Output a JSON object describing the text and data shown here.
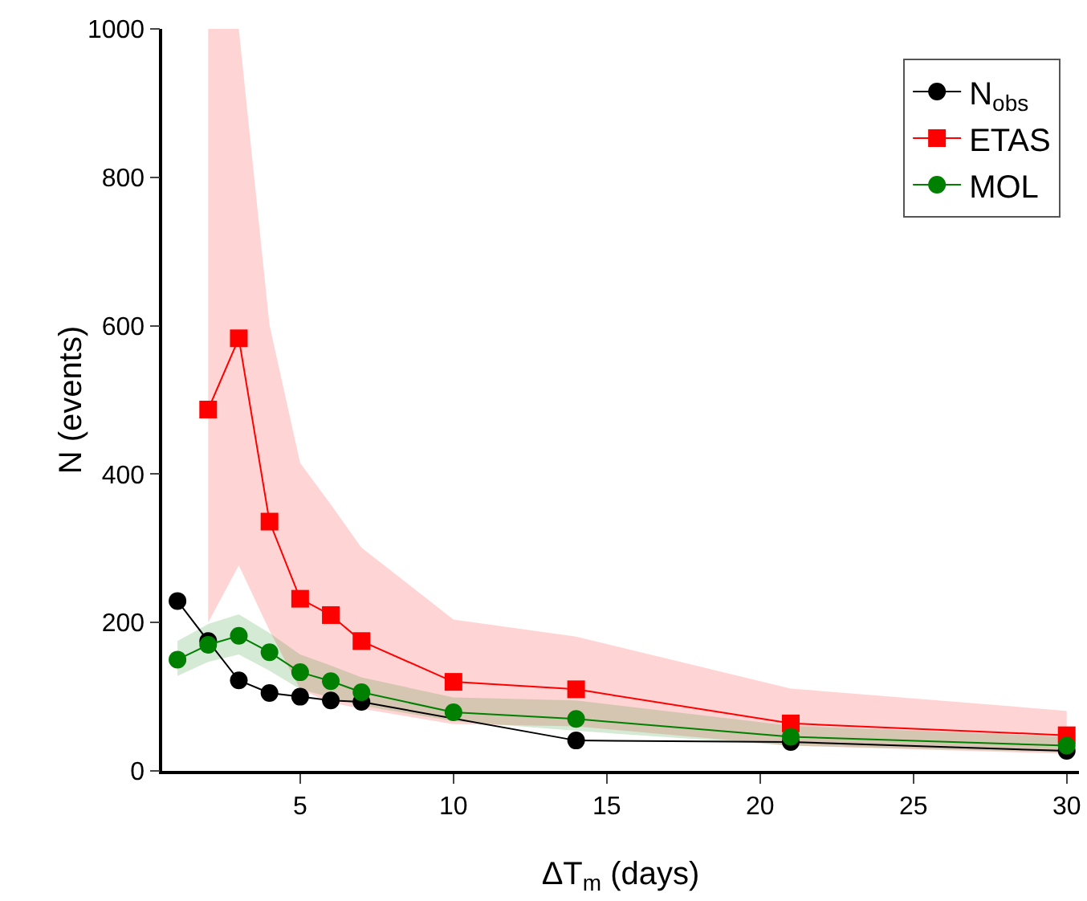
{
  "chart_data": {
    "type": "line",
    "xlabel": "ΔT$_{m}$ (days)",
    "ylabel": "N (events)",
    "x": [
      1,
      2,
      3,
      4,
      5,
      6,
      7,
      10,
      14,
      21,
      30
    ],
    "series": [
      {
        "name": "N$_{obs}$",
        "color": "#000000",
        "marker": "circle",
        "x": [
          1,
          2,
          3,
          4,
          5,
          6,
          7,
          14,
          21,
          30
        ],
        "values": [
          229,
          175,
          122,
          105,
          100,
          95,
          93,
          41,
          39,
          27
        ]
      },
      {
        "name": "ETAS",
        "color": "#ff0000",
        "marker": "square",
        "x": [
          2,
          3,
          4,
          5,
          6,
          7,
          10,
          14,
          21,
          30
        ],
        "values": [
          487,
          583,
          336,
          232,
          210,
          175,
          120,
          110,
          64,
          48
        ],
        "lower": [
          200,
          277,
          189,
          110,
          92,
          84,
          63,
          60,
          34,
          23
        ],
        "upper": [
          1000,
          1000,
          601,
          415,
          359,
          301,
          204,
          181,
          111,
          81
        ]
      },
      {
        "name": "MOL",
        "color": "#008000",
        "marker": "circle",
        "values": [
          150,
          170,
          182,
          160,
          133,
          121,
          106,
          79,
          70,
          46,
          34
        ],
        "lower": [
          128,
          147,
          157,
          135,
          110,
          99,
          88,
          67,
          54,
          34,
          25
        ],
        "upper": [
          175,
          198,
          211,
          186,
          157,
          142,
          126,
          99,
          95,
          61,
          46
        ]
      }
    ],
    "xlim": [
      0.5,
      30.4
    ],
    "xticks": [
      5,
      10,
      15,
      20,
      25,
      30
    ],
    "ylim": [
      0,
      1000
    ],
    "yticks": [
      0,
      200,
      400,
      600,
      800,
      1000
    ],
    "grid": false,
    "legend": "top right",
    "line_style": "solid"
  }
}
